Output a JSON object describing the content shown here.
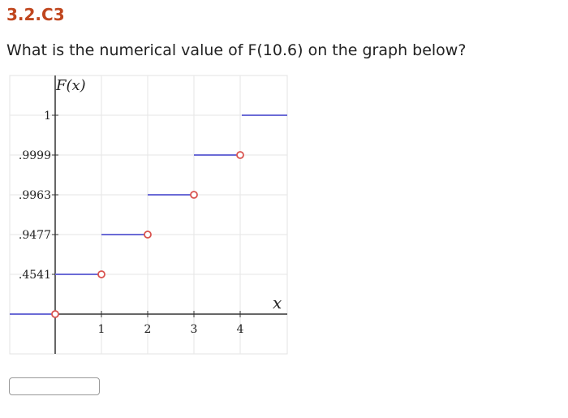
{
  "problem": {
    "id": "3.2.C3",
    "question": "What is the numerical value of F(10.6) on the graph below?"
  },
  "answer": {
    "value": "",
    "placeholder": ""
  },
  "colors": {
    "accent": "#c0461e",
    "step": "#6b6bd6",
    "open_circle": "#d9534f"
  },
  "chart_data": {
    "type": "step",
    "ylabel": "F(x)",
    "xlabel": "x",
    "x_ticks": [
      "1",
      "2",
      "3",
      "4"
    ],
    "y_ticks": [
      "1",
      ".9999",
      ".9963",
      ".9477",
      ".4541"
    ],
    "grid": true,
    "segments": [
      {
        "x_start": null,
        "x_end": 0,
        "y": 0,
        "open_end": true
      },
      {
        "x_start": 0,
        "x_end": 1,
        "y": 0.4541,
        "open_end": true
      },
      {
        "x_start": 1,
        "x_end": 2,
        "y": 0.9477,
        "open_end": true
      },
      {
        "x_start": 2,
        "x_end": 3,
        "y": 0.9963,
        "open_end": true
      },
      {
        "x_start": 3,
        "x_end": 4,
        "y": 0.9999,
        "open_end": true
      },
      {
        "x_start": 4,
        "x_end": null,
        "y": 1,
        "open_end": false
      }
    ]
  }
}
